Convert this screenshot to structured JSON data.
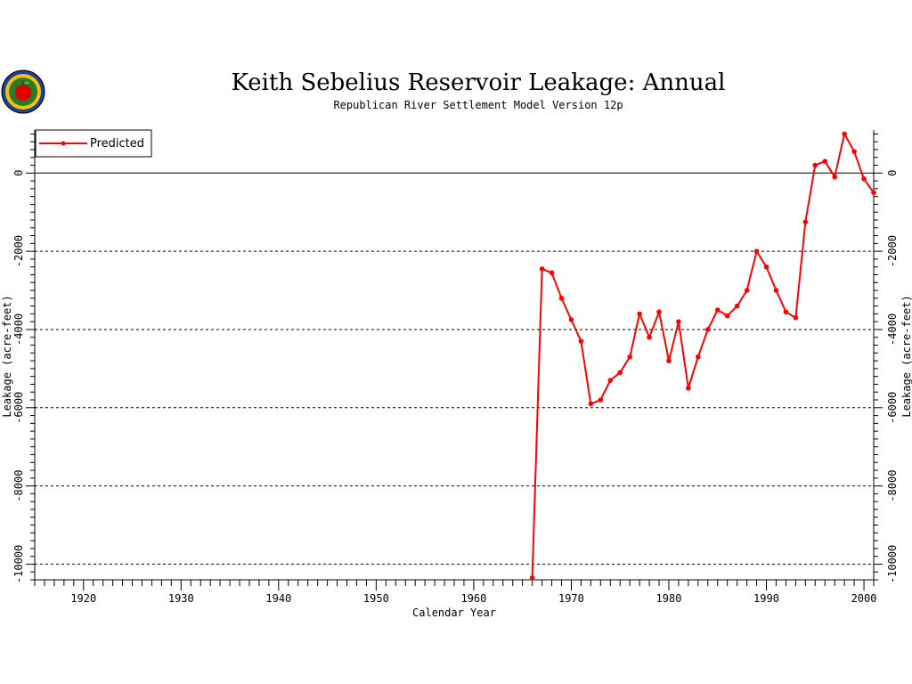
{
  "chart_data": {
    "type": "line",
    "title": "Keith Sebelius Reservoir Leakage: Annual",
    "subtitle": "Republican River Settlement Model Version 12p",
    "xlabel": "Calendar Year",
    "ylabel": "Leakage (acre-feet)",
    "xlim": [
      1915,
      2001
    ],
    "ylim": [
      -10400,
      1100
    ],
    "x_ticks": [
      1920,
      1930,
      1940,
      1950,
      1960,
      1970,
      1980,
      1990,
      2000
    ],
    "y_ticks": [
      0,
      -2000,
      -4000,
      -6000,
      -8000,
      -10000
    ],
    "gridlines": [
      -2000,
      -4000,
      -6000,
      -8000,
      -10000
    ],
    "zero_line": true,
    "legend_position": "top-left",
    "line_color": "#ff0000",
    "series": [
      {
        "name": "Predicted",
        "x": [
          1966,
          1967,
          1968,
          1969,
          1970,
          1971,
          1972,
          1973,
          1974,
          1975,
          1976,
          1977,
          1978,
          1979,
          1980,
          1981,
          1982,
          1983,
          1984,
          1985,
          1986,
          1987,
          1988,
          1989,
          1990,
          1991,
          1992,
          1993,
          1994,
          1995,
          1996,
          1997,
          1998,
          1999,
          2000,
          2001
        ],
        "values": [
          -10350,
          -2450,
          -2550,
          -3200,
          -3750,
          -4300,
          -5900,
          -5800,
          -5300,
          -5100,
          -4700,
          -3600,
          -4200,
          -3550,
          -4800,
          -3800,
          -5500,
          -4700,
          -4000,
          -3500,
          -3650,
          -3400,
          -3000,
          -2000,
          -2400,
          -3000,
          -3550,
          -3700,
          -1250,
          200,
          300,
          -100,
          1000,
          550,
          -150,
          -500
        ]
      }
    ]
  }
}
